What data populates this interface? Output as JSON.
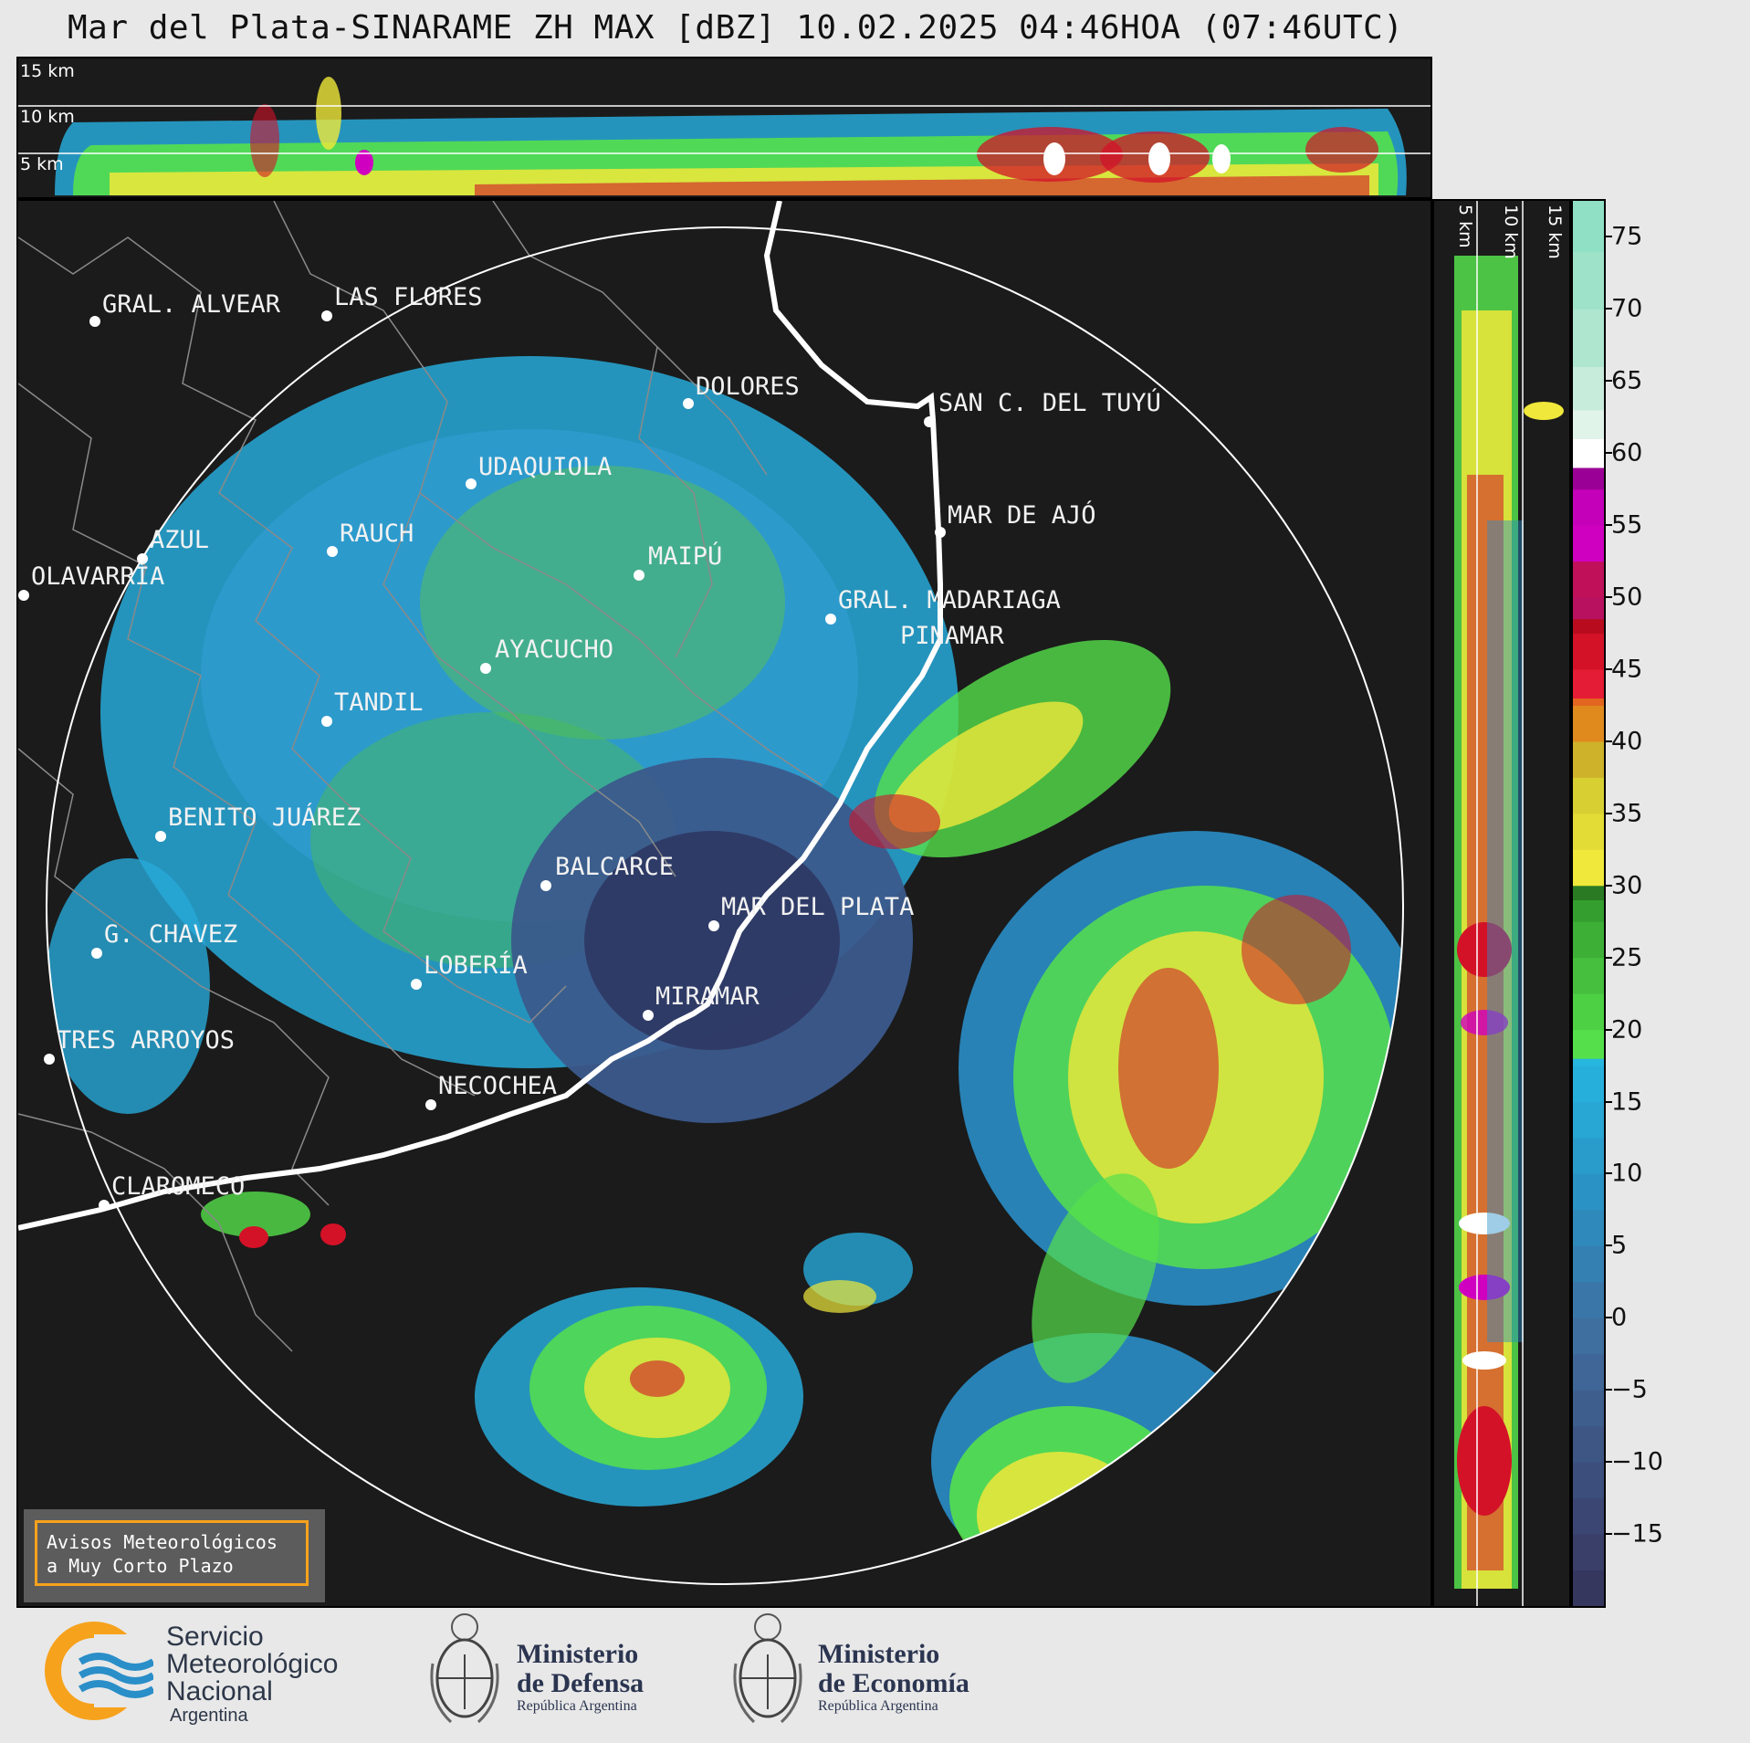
{
  "title": "Mar del Plata-SINARAME ZH MAX [dBZ] 10.02.2025 04:46HOA (07:46UTC)",
  "top_panel": {
    "km_labels": [
      "15 km",
      "10 km",
      "5 km"
    ]
  },
  "side_panel": {
    "km_labels": [
      "5 km",
      "10 km",
      "15 km"
    ]
  },
  "colorbar": {
    "ticks": [
      "75",
      "70",
      "65",
      "60",
      "55",
      "50",
      "45",
      "40",
      "35",
      "30",
      "25",
      "20",
      "15",
      "10",
      "5",
      "0",
      "−5",
      "−10",
      "−15"
    ],
    "colors": {
      "very_low": "#2e3560",
      "low": "#3b5a8c",
      "light_blue": "#2a8ec8",
      "cyan": "#27a9d8",
      "green_light": "#55e04b",
      "green_dark": "#2a7a23",
      "yellow": "#f0e83a",
      "orange": "#e0891d",
      "red": "#d31228",
      "magenta": "#d000c0",
      "white": "#ffffff",
      "mint": "#8fe0c4"
    }
  },
  "map": {
    "cities": [
      {
        "name": "GRAL. ALVEAR"
      },
      {
        "name": "LAS FLORES"
      },
      {
        "name": "DOLORES"
      },
      {
        "name": "SAN C. DEL TUYÚ"
      },
      {
        "name": "UDAQUIOLA"
      },
      {
        "name": "AZUL"
      },
      {
        "name": "RAUCH"
      },
      {
        "name": "OLAVARRÍA"
      },
      {
        "name": "MAIPÚ"
      },
      {
        "name": "MAR DE AJÓ"
      },
      {
        "name": "GRAL. MADARIAGA"
      },
      {
        "name": "PINAMAR"
      },
      {
        "name": "AYACUCHO"
      },
      {
        "name": "TANDIL"
      },
      {
        "name": "BENITO JUÁREZ"
      },
      {
        "name": "BALCARCE"
      },
      {
        "name": "MAR DEL PLATA"
      },
      {
        "name": "G. CHAVEZ"
      },
      {
        "name": "LOBERÍA"
      },
      {
        "name": "MIRAMAR"
      },
      {
        "name": "TRES ARROYOS"
      },
      {
        "name": "NECOCHEA"
      },
      {
        "name": "CLAROMECO"
      }
    ]
  },
  "avisos": {
    "line1": "Avisos Meteorológicos",
    "line2": "a Muy Corto Plazo"
  },
  "logos": {
    "smn": {
      "line1": "Servicio",
      "line2": "Meteorológico",
      "line3": "Nacional",
      "line4": "Argentina"
    },
    "defensa": {
      "line1": "Ministerio",
      "line2": "de Defensa",
      "line3": "República Argentina"
    },
    "economia": {
      "line1": "Ministerio",
      "line2": "de Economía",
      "line3": "República Argentina"
    }
  }
}
